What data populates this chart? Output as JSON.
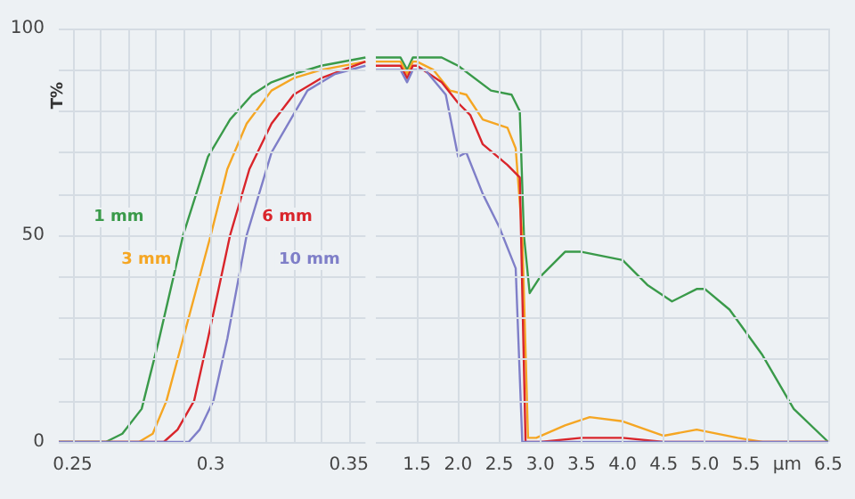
{
  "chart_data": [
    {
      "type": "line",
      "ylabel": "T%",
      "xlim": [
        0.245,
        0.356
      ],
      "ylim": [
        0,
        100
      ],
      "xticks": [
        0.25,
        {
          "value": 0.26,
          "label": null
        },
        {
          "value": 0.27,
          "label": null
        },
        {
          "value": 0.28,
          "label": null
        },
        {
          "value": 0.29,
          "label": null
        },
        0.3,
        {
          "value": 0.31,
          "label": null
        },
        {
          "value": 0.32,
          "label": null
        },
        {
          "value": 0.33,
          "label": null
        },
        {
          "value": 0.34,
          "label": null
        },
        0.35
      ],
      "yticks": [
        0,
        {
          "value": 10,
          "label": null
        },
        {
          "value": 20,
          "label": null
        },
        {
          "value": 30,
          "label": null
        },
        {
          "value": 40,
          "label": null
        },
        50,
        {
          "value": 60,
          "label": null
        },
        {
          "value": 70,
          "label": null
        },
        {
          "value": 80,
          "label": null
        },
        {
          "value": 90,
          "label": null
        },
        100
      ],
      "grid": true,
      "legend": false,
      "marker": "none",
      "line_style": "solid",
      "series": [
        {
          "name": "1 mm",
          "color": "#3a9a4a",
          "x": [
            0.245,
            0.262,
            0.268,
            0.275,
            0.281,
            0.29,
            0.299,
            0.307,
            0.315,
            0.322,
            0.33,
            0.34,
            0.356
          ],
          "values": [
            0,
            0,
            2,
            8,
            24,
            50,
            69,
            78,
            84,
            87,
            89,
            91,
            93
          ]
        },
        {
          "name": "3 mm",
          "color": "#f5a623",
          "x": [
            0.245,
            0.274,
            0.279,
            0.284,
            0.29,
            0.3,
            0.306,
            0.313,
            0.322,
            0.33,
            0.34,
            0.356
          ],
          "values": [
            0,
            0,
            2,
            10,
            25,
            50,
            66,
            77,
            85,
            88,
            90,
            92
          ]
        },
        {
          "name": "6 mm",
          "color": "#d9252b",
          "x": [
            0.245,
            0.283,
            0.288,
            0.294,
            0.299,
            0.307,
            0.314,
            0.322,
            0.33,
            0.34,
            0.356
          ],
          "values": [
            0,
            0,
            3,
            10,
            25,
            50,
            66,
            77,
            84,
            88,
            92
          ]
        },
        {
          "name": "10 mm",
          "color": "#7f7fc8",
          "x": [
            0.245,
            0.292,
            0.296,
            0.301,
            0.306,
            0.313,
            0.322,
            0.335,
            0.345,
            0.356
          ],
          "values": [
            0,
            0,
            3,
            10,
            25,
            50,
            70,
            85,
            89,
            91
          ]
        }
      ]
    },
    {
      "type": "line",
      "xlim": [
        1.0,
        6.5
      ],
      "ylim": [
        0,
        100
      ],
      "tick_labels": "x",
      "xticks": [
        1.5,
        {
          "value": 2,
          "label": "2.0"
        },
        2.5,
        {
          "value": 3,
          "label": "3.0"
        },
        3.5,
        {
          "value": 4,
          "label": "4.0"
        },
        4.5,
        {
          "value": 5,
          "label": "5.0"
        },
        5.5,
        {
          "value": 6,
          "label": "µm"
        },
        6.5
      ],
      "yticks": [
        0,
        {
          "value": 10,
          "label": null
        },
        {
          "value": 20,
          "label": null
        },
        {
          "value": 30,
          "label": null
        },
        {
          "value": 40,
          "label": null
        },
        50,
        {
          "value": 60,
          "label": null
        },
        {
          "value": 70,
          "label": null
        },
        {
          "value": 80,
          "label": null
        },
        {
          "value": 90,
          "label": null
        },
        100
      ],
      "grid": true,
      "legend": false,
      "marker": "none",
      "line_style": "solid",
      "series": [
        {
          "color": "#3a9a4a",
          "x": [
            1.0,
            1.3,
            1.38,
            1.45,
            1.8,
            2.0,
            2.4,
            2.65,
            2.75,
            2.8,
            2.87,
            3.0,
            3.3,
            3.5,
            4.0,
            4.3,
            4.6,
            4.9,
            5.0,
            5.3,
            5.7,
            6.08,
            6.5
          ],
          "values": [
            93,
            93,
            90,
            93,
            93,
            91,
            85,
            84,
            80,
            50,
            36,
            40,
            46,
            46,
            44,
            38,
            34,
            37,
            37,
            32,
            21,
            8,
            0
          ]
        },
        {
          "color": "#f5a623",
          "x": [
            1.0,
            1.3,
            1.38,
            1.45,
            1.5,
            1.7,
            1.9,
            2.1,
            2.3,
            2.6,
            2.7,
            2.78,
            2.85,
            2.95,
            3.3,
            3.6,
            4.0,
            4.5,
            4.9,
            5.4,
            5.7,
            6.5
          ],
          "values": [
            92,
            92,
            89,
            92,
            92,
            90,
            85,
            84,
            78,
            76,
            71,
            50,
            1,
            1,
            4,
            6,
            5,
            1.5,
            3,
            1,
            0,
            0
          ]
        },
        {
          "color": "#d9252b",
          "x": [
            1.0,
            1.3,
            1.38,
            1.45,
            1.5,
            1.8,
            2.0,
            2.15,
            2.3,
            2.6,
            2.75,
            2.82,
            3.0,
            3.5,
            4.0,
            4.5,
            6.5
          ],
          "values": [
            91,
            91,
            88,
            91,
            91,
            87,
            82,
            79,
            72,
            67,
            64,
            0,
            0,
            1,
            1,
            0,
            0
          ]
        },
        {
          "color": "#7f7fc8",
          "x": [
            1.0,
            1.3,
            1.38,
            1.45,
            1.6,
            1.85,
            2.0,
            2.1,
            2.3,
            2.5,
            2.7,
            2.78,
            3.0,
            6.5
          ],
          "values": [
            90,
            90,
            87,
            90,
            90,
            84,
            69,
            70,
            60,
            52,
            42,
            0,
            0,
            0
          ]
        }
      ]
    }
  ]
}
